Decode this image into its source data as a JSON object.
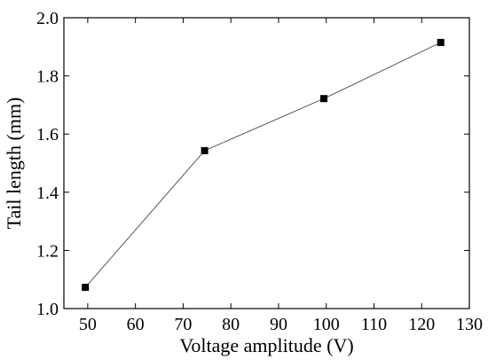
{
  "chart_data": {
    "type": "line",
    "xlabel": "Voltage amplitude (V)",
    "ylabel": "Tail length (mm)",
    "xlim": [
      45,
      130
    ],
    "ylim": [
      1.0,
      2.0
    ],
    "x_ticks": [
      50,
      60,
      70,
      80,
      90,
      100,
      110,
      120,
      130
    ],
    "y_ticks": [
      1.0,
      1.2,
      1.4,
      1.6,
      1.8,
      2.0
    ],
    "y_tick_labels": [
      "1.0",
      "1.2",
      "1.4",
      "1.6",
      "1.8",
      "2.0"
    ],
    "grid": false,
    "marker": "square",
    "line_color": "#555555",
    "marker_color": "#000000",
    "series": [
      {
        "x": [
          49.5,
          74.5,
          99.5,
          124
        ],
        "y": [
          1.073,
          1.543,
          1.722,
          1.915
        ]
      }
    ]
  }
}
